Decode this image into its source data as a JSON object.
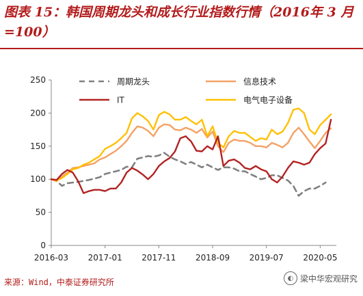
{
  "header": {
    "title": "图表 15：韩国周期龙头和成长行业指数行情（2016年 3 月=100）"
  },
  "footer": {
    "source": "来源：Wind，中泰证券研究所",
    "watermark": "梁中华宏观研究"
  },
  "chart_data": {
    "type": "line",
    "title": "图表 15：韩国周期龙头和成长行业指数行情（2016年 3 月=100）",
    "xlabel": "",
    "ylabel": "",
    "x_tick_labels": [
      "2016-03",
      "2017-01",
      "2017-11",
      "2018-09",
      "2019-07",
      "2020-05"
    ],
    "x_range_months": [
      0,
      53
    ],
    "ylim": [
      0,
      250
    ],
    "y_ticks": [
      0,
      50,
      100,
      150,
      200,
      250
    ],
    "grid": false,
    "legend_position": "top",
    "series": [
      {
        "name": "周期龙头",
        "color": "#808080",
        "style": "dashed",
        "points": [
          [
            0,
            100
          ],
          [
            1,
            97
          ],
          [
            2,
            90
          ],
          [
            3,
            94
          ],
          [
            5,
            96
          ],
          [
            7,
            99
          ],
          [
            9,
            103
          ],
          [
            10,
            108
          ],
          [
            11,
            110
          ],
          [
            12,
            112
          ],
          [
            13,
            114
          ],
          [
            14,
            119
          ],
          [
            15,
            118
          ],
          [
            16,
            131
          ],
          [
            17,
            133
          ],
          [
            18,
            135
          ],
          [
            19,
            134
          ],
          [
            20,
            136
          ],
          [
            21,
            140
          ],
          [
            22,
            134
          ],
          [
            23,
            130
          ],
          [
            24,
            127
          ],
          [
            25,
            123
          ],
          [
            26,
            126
          ],
          [
            27,
            122
          ],
          [
            28,
            118
          ],
          [
            29,
            122
          ],
          [
            30,
            118
          ],
          [
            31,
            114
          ],
          [
            32,
            118
          ],
          [
            33,
            118
          ],
          [
            34,
            116
          ],
          [
            35,
            112
          ],
          [
            36,
            112
          ],
          [
            37,
            108
          ],
          [
            38,
            104
          ],
          [
            39,
            100
          ],
          [
            40,
            102
          ],
          [
            41,
            106
          ],
          [
            42,
            106
          ],
          [
            43,
            102
          ],
          [
            44,
            98
          ],
          [
            45,
            90
          ],
          [
            46,
            75
          ],
          [
            47,
            82
          ],
          [
            48,
            86
          ],
          [
            49,
            86
          ],
          [
            50,
            90
          ],
          [
            51,
            95
          ]
        ]
      },
      {
        "name": "信息技术",
        "color": "#f4a165",
        "style": "solid",
        "points": [
          [
            0,
            100
          ],
          [
            1,
            97
          ],
          [
            2,
            104
          ],
          [
            3,
            110
          ],
          [
            4,
            117
          ],
          [
            5,
            118
          ],
          [
            6,
            120
          ],
          [
            7,
            122
          ],
          [
            8,
            124
          ],
          [
            9,
            130
          ],
          [
            10,
            133
          ],
          [
            11,
            138
          ],
          [
            12,
            143
          ],
          [
            13,
            150
          ],
          [
            14,
            158
          ],
          [
            15,
            170
          ],
          [
            16,
            180
          ],
          [
            17,
            178
          ],
          [
            18,
            173
          ],
          [
            19,
            165
          ],
          [
            20,
            178
          ],
          [
            21,
            183
          ],
          [
            22,
            182
          ],
          [
            23,
            175
          ],
          [
            24,
            174
          ],
          [
            25,
            178
          ],
          [
            26,
            175
          ],
          [
            27,
            170
          ],
          [
            28,
            176
          ],
          [
            29,
            163
          ],
          [
            30,
            172
          ],
          [
            31,
            150
          ],
          [
            32,
            141
          ],
          [
            33,
            155
          ],
          [
            34,
            160
          ],
          [
            35,
            158
          ],
          [
            36,
            158
          ],
          [
            37,
            155
          ],
          [
            38,
            150
          ],
          [
            39,
            150
          ],
          [
            40,
            148
          ],
          [
            41,
            155
          ],
          [
            42,
            152
          ],
          [
            43,
            148
          ],
          [
            44,
            155
          ],
          [
            45,
            170
          ],
          [
            46,
            178
          ],
          [
            47,
            168
          ],
          [
            48,
            157
          ],
          [
            49,
            147
          ],
          [
            50,
            158
          ],
          [
            51,
            170
          ],
          [
            52,
            177
          ]
        ]
      },
      {
        "name": "IT",
        "color": "#b22222",
        "style": "solid",
        "points": [
          [
            0,
            100
          ],
          [
            1,
            99
          ],
          [
            2,
            108
          ],
          [
            3,
            114
          ],
          [
            4,
            110
          ],
          [
            5,
            97
          ],
          [
            6,
            79
          ],
          [
            7,
            82
          ],
          [
            8,
            84
          ],
          [
            9,
            84
          ],
          [
            10,
            82
          ],
          [
            11,
            86
          ],
          [
            12,
            86
          ],
          [
            13,
            95
          ],
          [
            14,
            110
          ],
          [
            15,
            117
          ],
          [
            16,
            113
          ],
          [
            17,
            107
          ],
          [
            18,
            100
          ],
          [
            19,
            108
          ],
          [
            20,
            120
          ],
          [
            21,
            127
          ],
          [
            22,
            132
          ],
          [
            23,
            142
          ],
          [
            24,
            162
          ],
          [
            25,
            165
          ],
          [
            26,
            157
          ],
          [
            27,
            143
          ],
          [
            28,
            142
          ],
          [
            29,
            150
          ],
          [
            30,
            145
          ],
          [
            31,
            165
          ],
          [
            32,
            120
          ],
          [
            33,
            128
          ],
          [
            34,
            130
          ],
          [
            35,
            125
          ],
          [
            36,
            117
          ],
          [
            37,
            115
          ],
          [
            38,
            120
          ],
          [
            39,
            115
          ],
          [
            40,
            112
          ],
          [
            41,
            100
          ],
          [
            42,
            95
          ],
          [
            43,
            104
          ],
          [
            44,
            117
          ],
          [
            45,
            127
          ],
          [
            46,
            125
          ],
          [
            47,
            122
          ],
          [
            48,
            125
          ],
          [
            49,
            138
          ],
          [
            50,
            147
          ],
          [
            51,
            154
          ],
          [
            52,
            190
          ]
        ]
      },
      {
        "name": "电气电子设备",
        "color": "#ffc000",
        "style": "solid",
        "points": [
          [
            0,
            100
          ],
          [
            1,
            98
          ],
          [
            2,
            102
          ],
          [
            3,
            108
          ],
          [
            4,
            115
          ],
          [
            5,
            117
          ],
          [
            6,
            122
          ],
          [
            7,
            125
          ],
          [
            8,
            130
          ],
          [
            9,
            135
          ],
          [
            10,
            146
          ],
          [
            11,
            150
          ],
          [
            12,
            155
          ],
          [
            13,
            162
          ],
          [
            14,
            170
          ],
          [
            15,
            192
          ],
          [
            16,
            200
          ],
          [
            17,
            195
          ],
          [
            18,
            188
          ],
          [
            19,
            175
          ],
          [
            20,
            197
          ],
          [
            21,
            202
          ],
          [
            22,
            198
          ],
          [
            23,
            190
          ],
          [
            24,
            190
          ],
          [
            25,
            194
          ],
          [
            26,
            188
          ],
          [
            27,
            183
          ],
          [
            28,
            190
          ],
          [
            29,
            165
          ],
          [
            30,
            180
          ],
          [
            31,
            155
          ],
          [
            32,
            148
          ],
          [
            33,
            165
          ],
          [
            34,
            173
          ],
          [
            35,
            170
          ],
          [
            36,
            170
          ],
          [
            37,
            164
          ],
          [
            38,
            158
          ],
          [
            39,
            162
          ],
          [
            40,
            160
          ],
          [
            41,
            175
          ],
          [
            42,
            168
          ],
          [
            43,
            172
          ],
          [
            44,
            185
          ],
          [
            45,
            205
          ],
          [
            46,
            207
          ],
          [
            47,
            200
          ],
          [
            48,
            175
          ],
          [
            49,
            168
          ],
          [
            50,
            182
          ],
          [
            51,
            190
          ],
          [
            52,
            198
          ]
        ]
      }
    ]
  }
}
